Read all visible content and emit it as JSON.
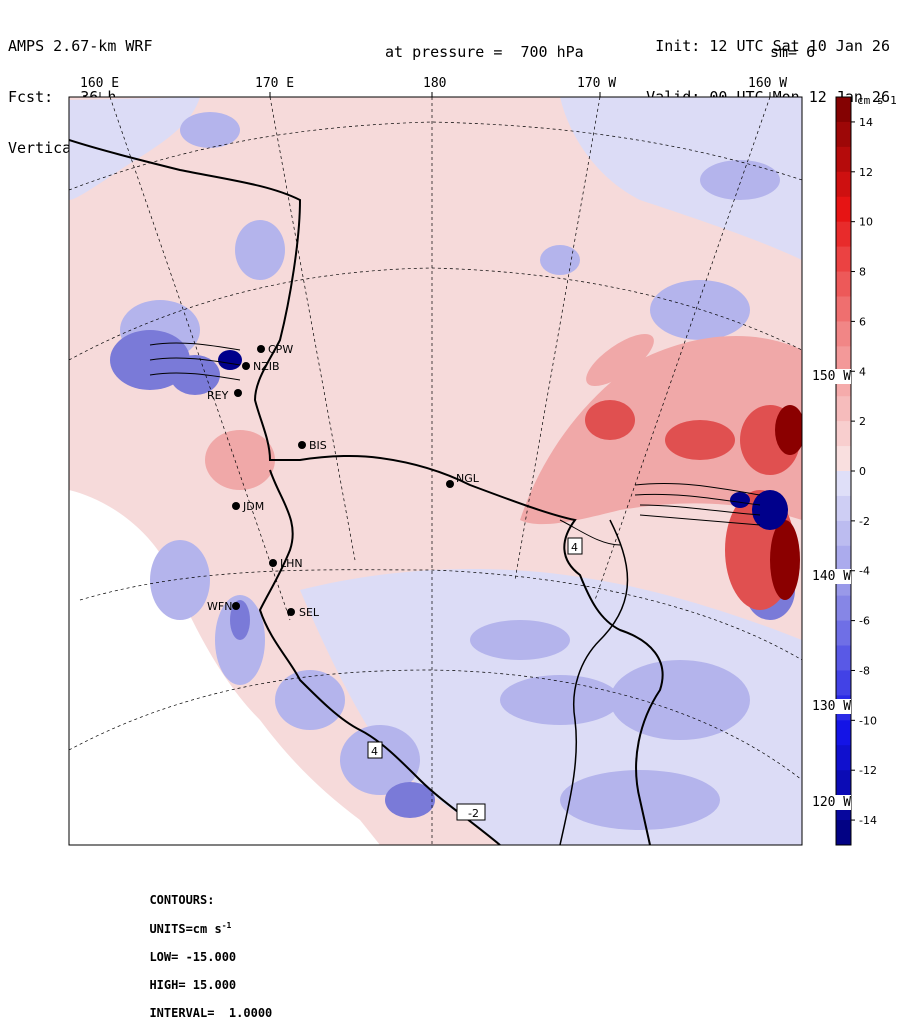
{
  "header": {
    "model": "AMPS 2.67-km WRF",
    "forecast": "Fcst:   36 h",
    "field": "Vertical velocity",
    "init": "Init: 12 UTC Sat 10 Jan 26",
    "valid": "Valid: 00 UTC Mon 12 Jan 26",
    "pressure": "at pressure =  700 hPa",
    "smoothing": "sm= 6"
  },
  "longitude_labels": [
    "160 E",
    "170 E",
    "180",
    "170 W",
    "160 W"
  ],
  "latitude_labels": [
    "150 W",
    "140 W",
    "130 W",
    "120 W"
  ],
  "colorbar": {
    "units_label": "cm s-1",
    "ticks": [
      "14",
      "12",
      "10",
      "8",
      "6",
      "4",
      "2",
      "0",
      "-2",
      "-4",
      "-6",
      "-8",
      "-10",
      "-12",
      "-14"
    ],
    "min": -15,
    "max": 15
  },
  "stations": [
    "CPW",
    "NZIB",
    "REY",
    "BIS",
    "NGL",
    "JDM",
    "LHN",
    "WFN",
    "SEL"
  ],
  "extrema_markers": [
    "4",
    "4",
    "-2"
  ],
  "footer": {
    "contours": "CONTOURS:",
    "units": "UNITS=cm s",
    "units_sup": "-1",
    "low": "LOW= -15.000",
    "high": "HIGH= 15.000",
    "interval": "INTERVAL=  1.0000"
  },
  "colors": {
    "strong_pos": "#8b0000",
    "mid_pos": "#e83030",
    "weak_pos": "#f6d4d4",
    "neutral": "#ffffff",
    "weak_neg": "#dcdcf4",
    "mid_neg": "#7a7ad8",
    "strong_neg": "#00008b"
  }
}
